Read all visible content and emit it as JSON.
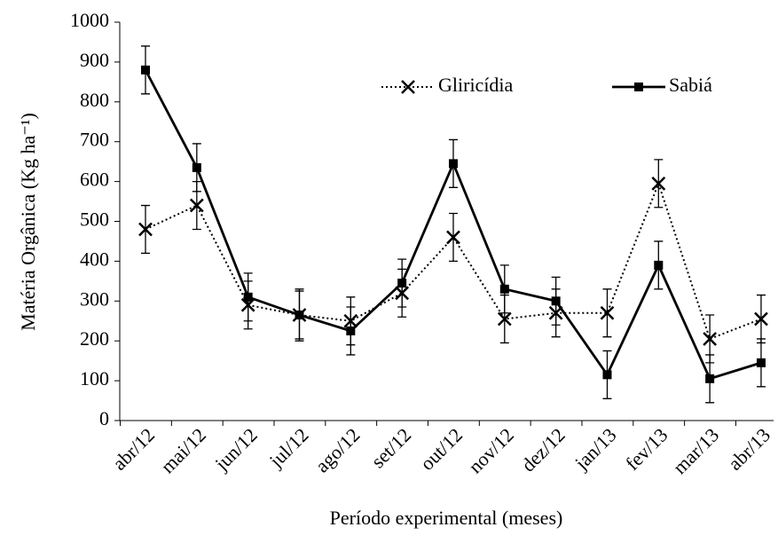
{
  "chart_data": {
    "type": "line",
    "x_label": "Período experimental (meses)",
    "y_label": "Matéria Orgânica (Kg ha⁻¹)",
    "categories": [
      "abr/12",
      "mai/12",
      "jun/12",
      "jul/12",
      "ago/12",
      "set/12",
      "out/12",
      "nov/12",
      "dez/12",
      "jan/13",
      "fev/13",
      "mar/13",
      "abr/13"
    ],
    "series": [
      {
        "name": "Gliricídia",
        "color": "#000000",
        "dash": "dotted",
        "marker": "x",
        "values": [
          480,
          540,
          290,
          265,
          250,
          320,
          460,
          255,
          270,
          270,
          595,
          205,
          255
        ],
        "errors": [
          60,
          60,
          60,
          65,
          60,
          60,
          60,
          60,
          60,
          60,
          60,
          60,
          60
        ]
      },
      {
        "name": "Sabiá",
        "color": "#000000",
        "dash": "solid",
        "marker": "square",
        "values": [
          880,
          635,
          310,
          265,
          225,
          345,
          645,
          330,
          300,
          115,
          390,
          105,
          145
        ],
        "errors": [
          60,
          60,
          60,
          60,
          60,
          60,
          60,
          60,
          60,
          60,
          60,
          60,
          60
        ]
      }
    ],
    "ylim": [
      0,
      1000
    ],
    "yticks": [
      0,
      100,
      200,
      300,
      400,
      500,
      600,
      700,
      800,
      900,
      1000
    ],
    "legend": "top-right"
  }
}
